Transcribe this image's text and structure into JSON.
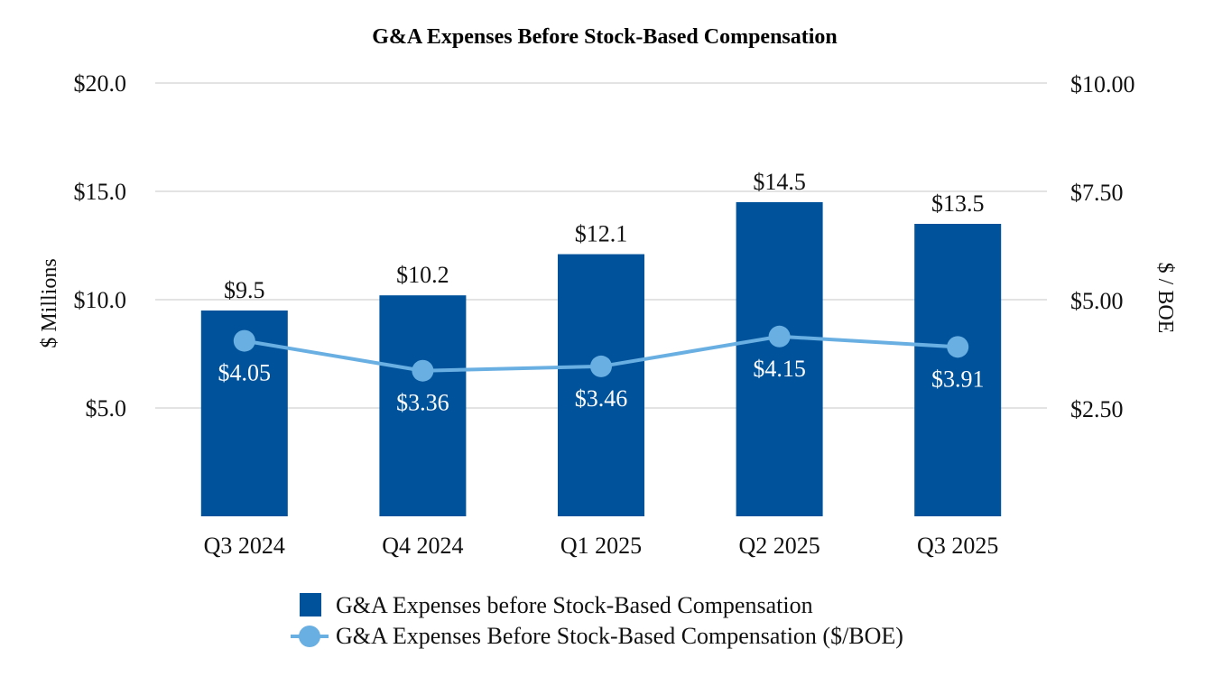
{
  "chart_data": {
    "type": "bar",
    "title": "G&A Expenses Before Stock-Based Compensation",
    "categories": [
      "Q3 2024",
      "Q4 2024",
      "Q1 2025",
      "Q2 2025",
      "Q3 2025"
    ],
    "series": [
      {
        "name": "G&A Expenses before Stock-Based Compensation",
        "type": "bar",
        "axis": "left",
        "values": [
          9.5,
          10.2,
          12.1,
          14.5,
          13.5
        ],
        "labels": [
          "$9.5",
          "$10.2",
          "$12.1",
          "$14.5",
          "$13.5"
        ],
        "color": "#00539b"
      },
      {
        "name": "G&A Expenses Before Stock-Based Compensation ($/BOE)",
        "type": "line",
        "axis": "right",
        "values": [
          4.05,
          3.36,
          3.46,
          4.15,
          3.91
        ],
        "labels": [
          "$4.05",
          "$3.36",
          "$3.46",
          "$4.15",
          "$3.91"
        ],
        "color": "#6aafe2"
      }
    ],
    "ylabel": "$ Millions",
    "ylim": [
      0,
      20
    ],
    "yticks": [
      5,
      10,
      15,
      20
    ],
    "ytick_labels": [
      "$5.0",
      "$10.0",
      "$15.0",
      "$20.0"
    ],
    "y2label": "$ / BOE",
    "y2lim": [
      0,
      10
    ],
    "y2ticks": [
      2.5,
      5,
      7.5,
      10
    ],
    "y2tick_labels": [
      "$2.50",
      "$5.00",
      "$7.50",
      "$10.00"
    ],
    "grid": true,
    "legend_position": "bottom-center"
  },
  "colors": {
    "bar": "#00539b",
    "line": "#6aafe2",
    "grid": "#e3e3e3"
  }
}
